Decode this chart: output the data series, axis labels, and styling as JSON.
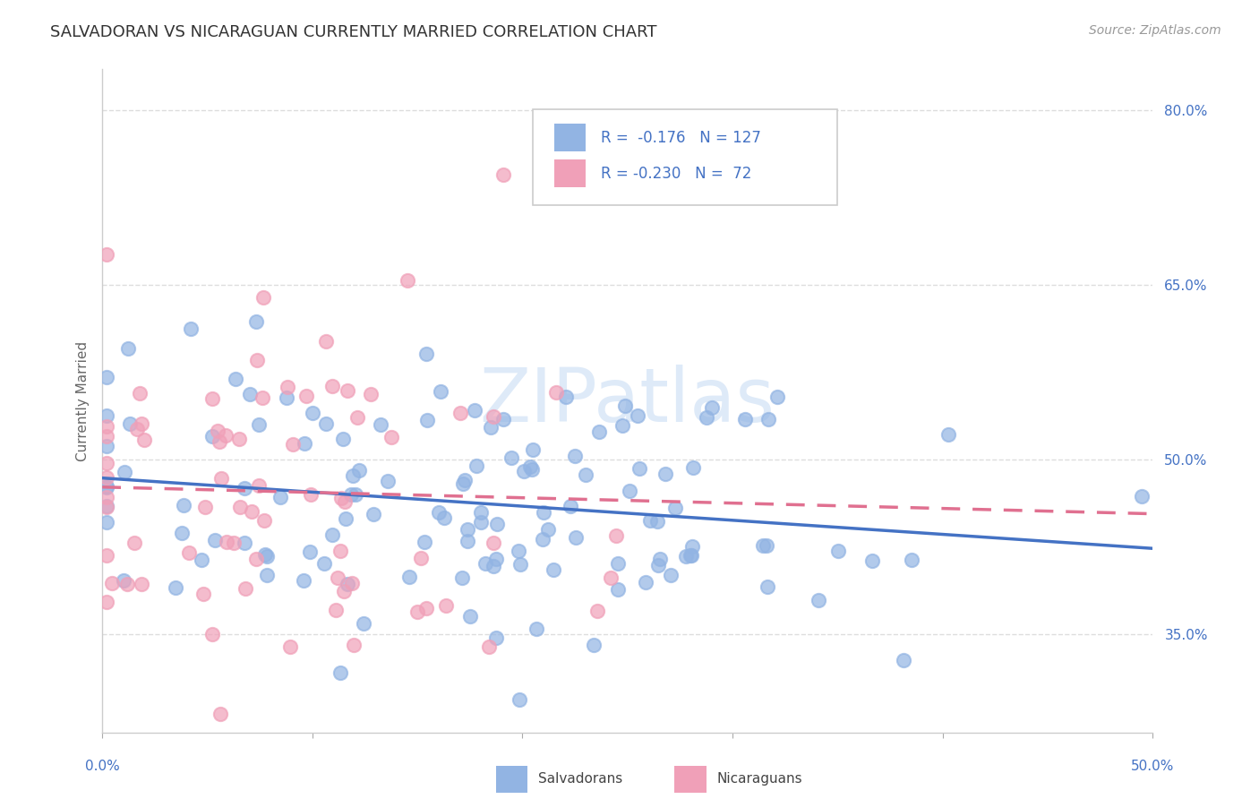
{
  "title": "SALVADORAN VS NICARAGUAN CURRENTLY MARRIED CORRELATION CHART",
  "source": "Source: ZipAtlas.com",
  "ylabel": "Currently Married",
  "watermark": "ZIPatlas",
  "ytick_labels": [
    "80.0%",
    "65.0%",
    "50.0%",
    "35.0%"
  ],
  "ytick_values": [
    0.8,
    0.65,
    0.5,
    0.35
  ],
  "xlim": [
    0.0,
    0.5
  ],
  "ylim": [
    0.265,
    0.835
  ],
  "salvadoran_color": "#92b4e3",
  "nicaraguan_color": "#f0a0b8",
  "trendline_blue": "#4472C4",
  "trendline_pink": "#e07090",
  "salvadoran_R": -0.176,
  "salvadoran_N": 127,
  "nicaraguan_R": -0.23,
  "nicaraguan_N": 72,
  "salvadorans_label": "Salvadorans",
  "nicaraguans_label": "Nicaraguans",
  "background_color": "#ffffff",
  "grid_color": "#dddddd",
  "title_fontsize": 13,
  "axis_label_fontsize": 11,
  "tick_fontsize": 11,
  "source_fontsize": 10,
  "watermark_color": "#c8dcf4",
  "watermark_fontsize": 60,
  "scatter_size": 120,
  "scatter_alpha": 0.7,
  "scatter_linewidth": 1.5
}
